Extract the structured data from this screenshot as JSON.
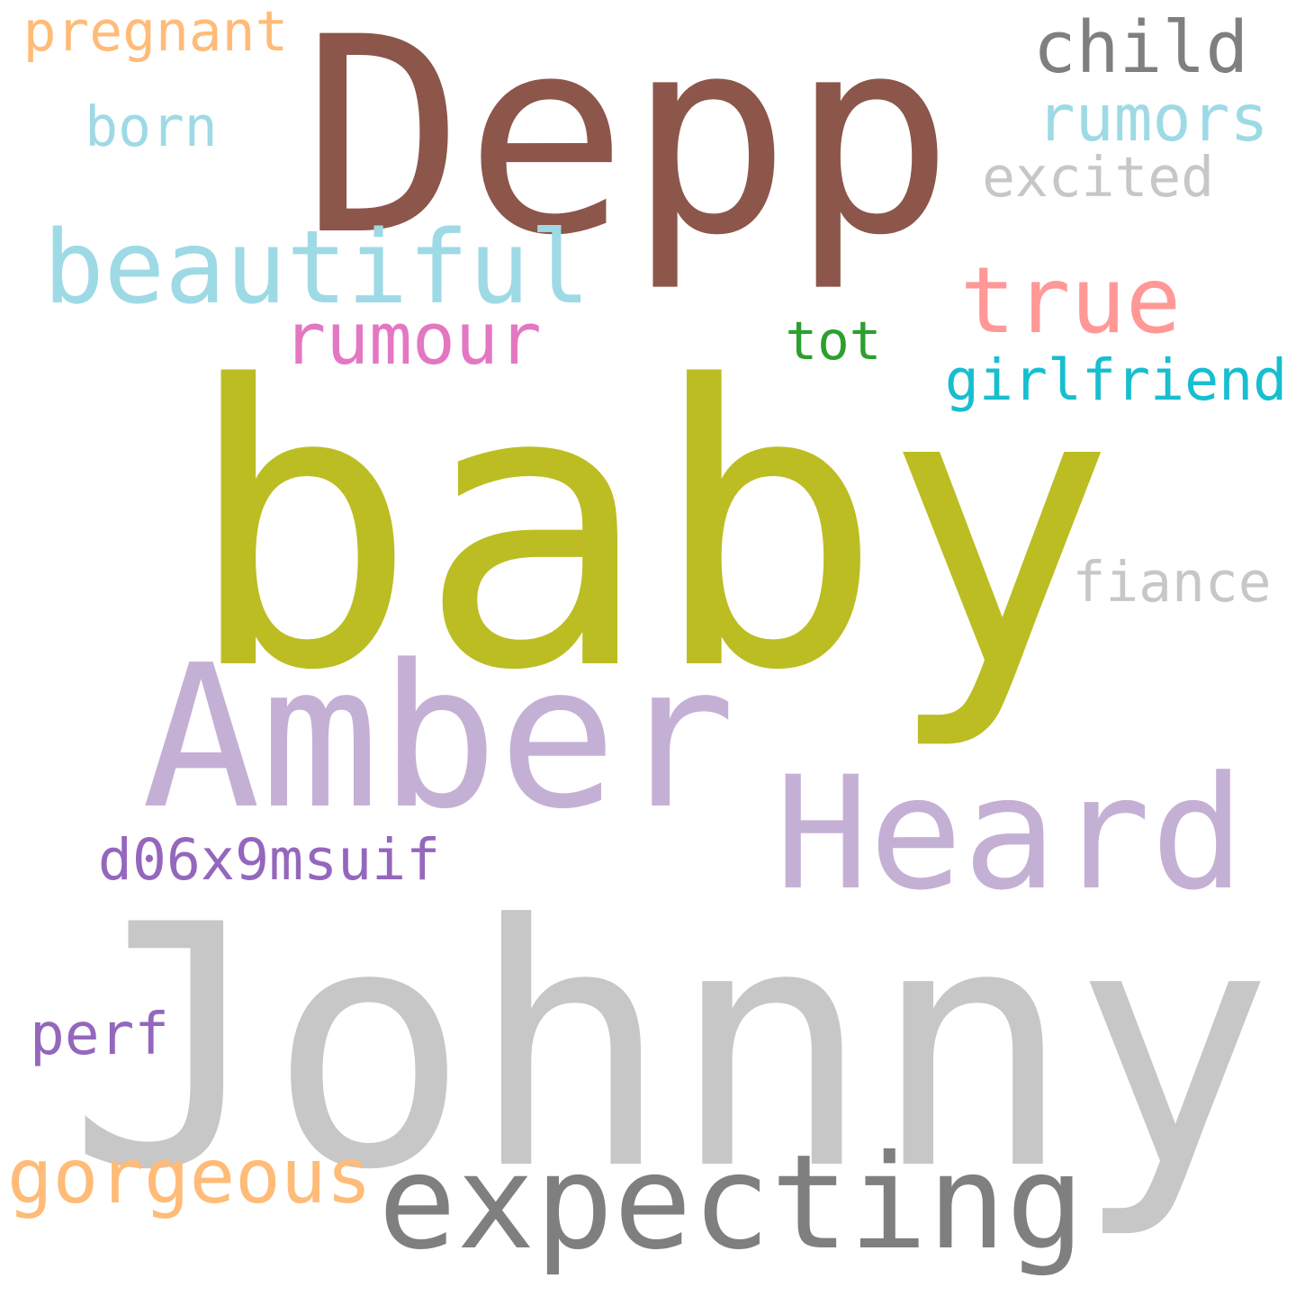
{
  "words": [
    {
      "key": "baby",
      "text": "baby",
      "color": "#bcbd22"
    },
    {
      "key": "johnny",
      "text": "Johnny",
      "color": "#c7c7c7"
    },
    {
      "key": "depp",
      "text": "Depp",
      "color": "#8c564b"
    },
    {
      "key": "amber",
      "text": "Amber",
      "color": "#c5b0d5"
    },
    {
      "key": "heard",
      "text": "Heard",
      "color": "#c5b0d5"
    },
    {
      "key": "expecting",
      "text": "expecting",
      "color": "#7f7f7f"
    },
    {
      "key": "beautiful",
      "text": "beautiful",
      "color": "#9edae5"
    },
    {
      "key": "true",
      "text": "true",
      "color": "#ff9896"
    },
    {
      "key": "rumour",
      "text": "rumour",
      "color": "#e377c2"
    },
    {
      "key": "child",
      "text": "child",
      "color": "#7f7f7f"
    },
    {
      "key": "rumors",
      "text": "rumors",
      "color": "#9edae5"
    },
    {
      "key": "pregnant",
      "text": "pregnant",
      "color": "#ffbb78"
    },
    {
      "key": "gorgeous",
      "text": "gorgeous",
      "color": "#ffbb78"
    },
    {
      "key": "girlfriend",
      "text": "girlfriend",
      "color": "#17becf"
    },
    {
      "key": "d06x9msuif",
      "text": "d06x9msuif",
      "color": "#9467bd"
    },
    {
      "key": "excited",
      "text": "excited",
      "color": "#c7c7c7"
    },
    {
      "key": "born",
      "text": "born",
      "color": "#9edae5"
    },
    {
      "key": "fiance",
      "text": "fiance",
      "color": "#c7c7c7"
    },
    {
      "key": "tot",
      "text": "tot",
      "color": "#2ca02c"
    },
    {
      "key": "perf",
      "text": "perf",
      "color": "#9467bd"
    }
  ]
}
